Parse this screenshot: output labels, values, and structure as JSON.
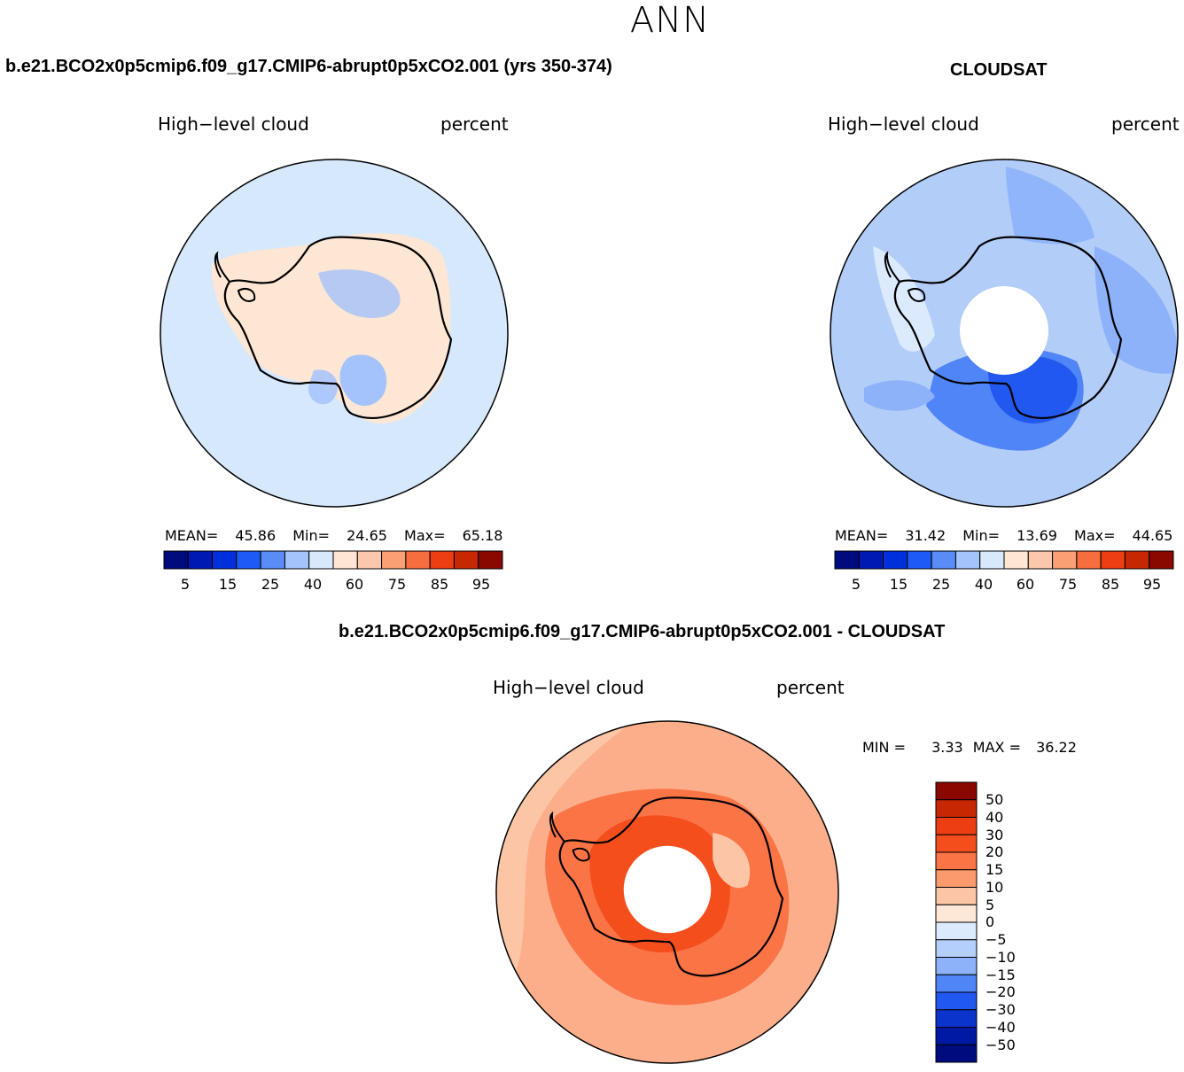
{
  "season": "ANN",
  "panels": {
    "model": {
      "title": "b.e21.BCO2x0p5cmip6.f09_g17.CMIP6-abrupt0p5xCO2.001 (yrs 350-374)",
      "variable": "High−level cloud",
      "units": "percent",
      "mean_label": "MEAN=",
      "mean": "45.86",
      "min_label": "Min=",
      "min": "24.65",
      "max_label": "Max=",
      "max": "65.18"
    },
    "obs": {
      "title": "CLOUDSAT",
      "variable": "High−level cloud",
      "units": "percent",
      "mean_label": "MEAN=",
      "mean": "31.42",
      "min_label": "Min=",
      "min": "13.69",
      "max_label": "Max=",
      "max": "44.65"
    },
    "diff": {
      "title": "b.e21.BCO2x0p5cmip6.f09_g17.CMIP6-abrupt0p5xCO2.001 - CLOUDSAT",
      "variable": "High−level cloud",
      "units": "percent",
      "min_label": "MIN =",
      "min": "3.33",
      "max_label": "MAX =",
      "max": "36.22"
    }
  },
  "colorbar_horizontal": {
    "tick_labels": [
      "5",
      "15",
      "25",
      "40",
      "60",
      "75",
      "85",
      "95"
    ],
    "colors": [
      "#000c7d",
      "#0019b2",
      "#0030db",
      "#1e5af6",
      "#5a8cf8",
      "#a4c2fb",
      "#d9e9fc",
      "#fde6d3",
      "#fcc7ab",
      "#fb9f75",
      "#f66d3e",
      "#ec3d13",
      "#c72803",
      "#8b0800"
    ]
  },
  "colorbar_vertical": {
    "tick_labels": [
      "50",
      "40",
      "30",
      "20",
      "15",
      "10",
      "5",
      "0",
      "−5",
      "−10",
      "−15",
      "−20",
      "−30",
      "−40",
      "−50"
    ],
    "colors_top_to_bottom": [
      "#8b0800",
      "#c72803",
      "#ec3d13",
      "#f44e1c",
      "#fa7446",
      "#fb9a6c",
      "#fcc6a6",
      "#fde8d8",
      "#dbeafc",
      "#b4cffb",
      "#8db2f9",
      "#4f85f7",
      "#2158ef",
      "#0a34cc",
      "#0019a4",
      "#000c7d"
    ]
  },
  "map_fill_colors": {
    "model_ocean": "#d6e8fc",
    "obs_ocean": "#b3cdf9",
    "diff_ocean": "#fcae8a",
    "pole_hole": "#ffffff"
  }
}
